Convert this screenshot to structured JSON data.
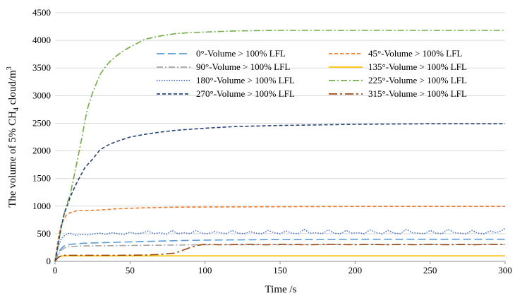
{
  "chart_data": {
    "type": "line",
    "xlabel": "Time /s",
    "ylabel_parts": [
      "The volume of 5% CH",
      "4",
      " cloud/m",
      "3"
    ],
    "xlim": [
      0,
      300
    ],
    "ylim": [
      0,
      4500
    ],
    "xticks": [
      0,
      50,
      100,
      150,
      200,
      250,
      300
    ],
    "yticks": [
      0,
      500,
      1000,
      1500,
      2000,
      2500,
      3000,
      3500,
      4000,
      4500
    ],
    "grid": "horizontal",
    "legend_position": "upper-right",
    "series": [
      {
        "name": "0°-Volume > 100% LFL",
        "color": "#5b9bd5",
        "dash": "long-dash",
        "x": [
          0,
          2,
          4,
          6,
          10,
          20,
          40,
          60,
          80,
          100,
          150,
          200,
          250,
          300
        ],
        "y": [
          0,
          150,
          230,
          280,
          310,
          330,
          345,
          360,
          375,
          385,
          395,
          400,
          400,
          400
        ]
      },
      {
        "name": "45°-Volume > 100% LFL",
        "color": "#ed7d31",
        "dash": "dash",
        "x": [
          0,
          2,
          4,
          6,
          8,
          10,
          15,
          20,
          30,
          40,
          50,
          60,
          80,
          100,
          150,
          200,
          250,
          300
        ],
        "y": [
          0,
          400,
          650,
          780,
          850,
          880,
          920,
          920,
          930,
          950,
          960,
          970,
          980,
          985,
          990,
          995,
          995,
          995
        ]
      },
      {
        "name": "90°-Volume > 100% LFL",
        "color": "#a5a5a5",
        "dash": "dash-dot",
        "x": [
          0,
          2,
          4,
          6,
          8,
          10,
          20,
          40,
          60,
          80,
          100,
          150,
          200,
          250,
          300
        ],
        "y": [
          0,
          120,
          200,
          240,
          260,
          270,
          280,
          285,
          290,
          295,
          300,
          300,
          305,
          305,
          305
        ]
      },
      {
        "name": "135°-Volume > 100% LFL",
        "color": "#ffc000",
        "dash": "solid",
        "x": [
          0,
          2,
          4,
          6,
          10,
          50,
          100,
          150,
          200,
          250,
          300
        ],
        "y": [
          0,
          70,
          95,
          100,
          100,
          100,
          100,
          100,
          100,
          100,
          100
        ]
      },
      {
        "name": "180°-Volume > 100% LFL",
        "color": "#4472c4",
        "dash": "dotted",
        "x": [
          0,
          2,
          4,
          6,
          8,
          10,
          14,
          18,
          22,
          26,
          30,
          34,
          38,
          42,
          46,
          50,
          54,
          58,
          62,
          66,
          70,
          74,
          78,
          82,
          86,
          90,
          94,
          98,
          102,
          106,
          110,
          114,
          118,
          122,
          126,
          130,
          134,
          138,
          142,
          146,
          150,
          154,
          158,
          162,
          166,
          170,
          174,
          178,
          182,
          186,
          190,
          194,
          198,
          202,
          206,
          210,
          214,
          218,
          222,
          226,
          230,
          234,
          238,
          242,
          246,
          250,
          254,
          258,
          262,
          266,
          270,
          274,
          278,
          282,
          286,
          290,
          294,
          298,
          300
        ],
        "y": [
          0,
          250,
          400,
          460,
          500,
          510,
          470,
          490,
          480,
          500,
          510,
          490,
          520,
          500,
          490,
          530,
          500,
          510,
          550,
          500,
          520,
          490,
          560,
          500,
          520,
          500,
          560,
          510,
          500,
          540,
          520,
          500,
          560,
          510,
          500,
          540,
          510,
          500,
          560,
          520,
          500,
          550,
          510,
          500,
          580,
          510,
          520,
          500,
          570,
          510,
          500,
          560,
          510,
          520,
          500,
          570,
          520,
          500,
          560,
          510,
          500,
          580,
          520,
          510,
          500,
          560,
          510,
          500,
          580,
          520,
          510,
          500,
          560,
          510,
          500,
          550,
          520,
          560,
          600
        ]
      },
      {
        "name": "225°-Volume > 100% LFL",
        "color": "#70ad47",
        "dash": "dash-dot",
        "x": [
          0,
          2,
          4,
          6,
          8,
          10,
          12,
          15,
          18,
          20,
          22,
          25,
          28,
          30,
          33,
          36,
          40,
          45,
          50,
          55,
          60,
          70,
          80,
          90,
          100,
          120,
          150,
          200,
          250,
          300
        ],
        "y": [
          0,
          300,
          600,
          850,
          1050,
          1200,
          1450,
          1850,
          2250,
          2550,
          2800,
          3050,
          3250,
          3380,
          3500,
          3600,
          3700,
          3800,
          3880,
          3950,
          4020,
          4080,
          4120,
          4140,
          4150,
          4170,
          4180,
          4180,
          4180,
          4180
        ]
      },
      {
        "name": "270°-Volume > 100% LFL",
        "color": "#264478",
        "dash": "dash",
        "x": [
          0,
          2,
          4,
          6,
          8,
          10,
          12,
          15,
          18,
          20,
          25,
          30,
          35,
          40,
          50,
          60,
          70,
          80,
          90,
          100,
          120,
          150,
          200,
          250,
          300
        ],
        "y": [
          0,
          300,
          600,
          850,
          1000,
          1150,
          1280,
          1450,
          1600,
          1700,
          1850,
          2020,
          2100,
          2160,
          2250,
          2300,
          2340,
          2370,
          2390,
          2410,
          2440,
          2460,
          2480,
          2490,
          2490
        ]
      },
      {
        "name": "315°-Volume > 100% LFL",
        "color": "#9e480e",
        "dash": "long-dash-dot",
        "x": [
          0,
          2,
          4,
          6,
          10,
          20,
          40,
          60,
          70,
          80,
          85,
          90,
          95,
          100,
          110,
          120,
          130,
          140,
          150,
          160,
          170,
          180,
          190,
          200,
          210,
          220,
          230,
          240,
          250,
          260,
          270,
          280,
          290,
          300
        ],
        "y": [
          0,
          70,
          100,
          110,
          110,
          110,
          110,
          115,
          125,
          150,
          200,
          250,
          290,
          310,
          300,
          305,
          310,
          300,
          310,
          305,
          300,
          310,
          305,
          300,
          310,
          300,
          305,
          300,
          310,
          300,
          305,
          300,
          310,
          305
        ]
      }
    ]
  }
}
